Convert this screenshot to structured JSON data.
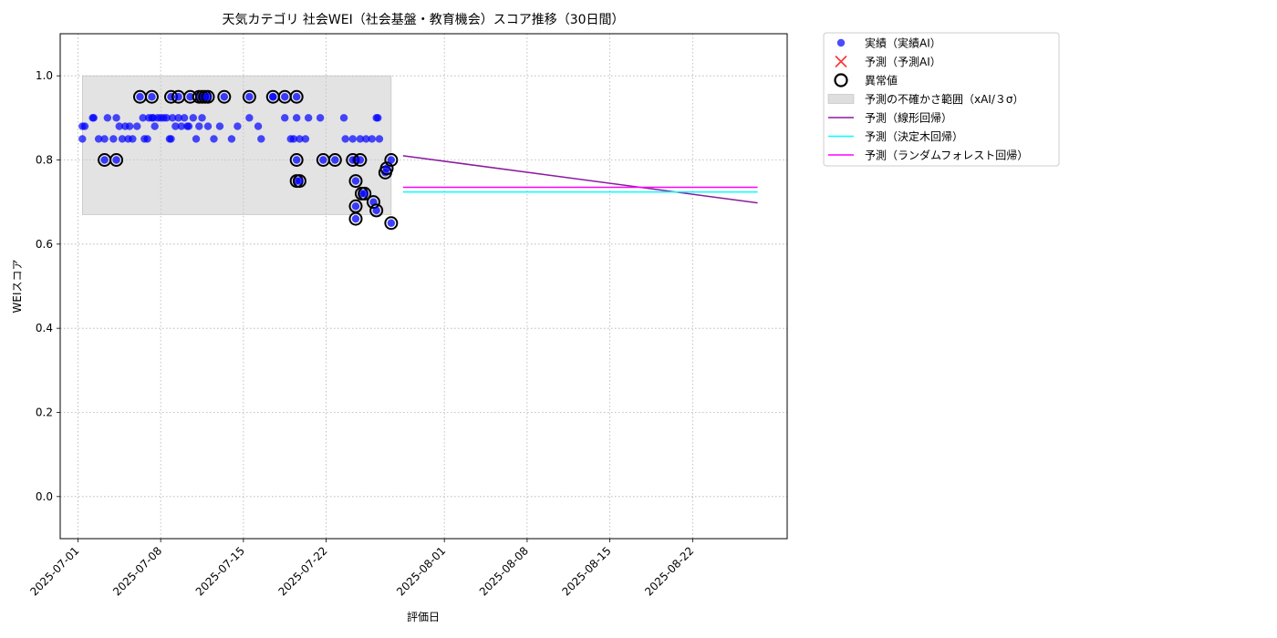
{
  "chart_data": {
    "type": "scatter",
    "title": "天気カテゴリ 社会WEI（社会基盤・教育機会）スコア推移（30日間）",
    "xlabel": "評価日",
    "ylabel": "WEIスコア",
    "xlim": [
      "2025-06-29T12:00",
      "2025-08-30T00:00"
    ],
    "ylim": [
      -0.1,
      1.1
    ],
    "xticks": [
      "2025-07-01",
      "2025-07-08",
      "2025-07-15",
      "2025-07-22",
      "2025-08-01",
      "2025-08-08",
      "2025-08-15",
      "2025-08-22"
    ],
    "yticks": [
      0.0,
      0.2,
      0.4,
      0.6,
      0.8,
      1.0
    ],
    "ytick_labels": [
      "0.0",
      "0.2",
      "0.4",
      "0.6",
      "0.8",
      "1.0"
    ],
    "grid": true,
    "legend_position": "outside-upper-right",
    "legend": [
      {
        "label": "実績（実績AI）",
        "kind": "scatter-dot",
        "color": "#0000ff"
      },
      {
        "label": "予測（予測AI）",
        "kind": "x-marker",
        "color": "#ff0000"
      },
      {
        "label": "異常値",
        "kind": "ring",
        "color": "#000000"
      },
      {
        "label": "予測の不確かさ範囲（xAI/３σ）",
        "kind": "band",
        "color": "#c8c8c8"
      },
      {
        "label": "予測（線形回帰）",
        "kind": "line",
        "color": "#8b1a9e"
      },
      {
        "label": "予測（決定木回帰）",
        "kind": "line",
        "color": "#00ffff"
      },
      {
        "label": "予測（ランダムフォレスト回帰）",
        "kind": "line",
        "color": "#ff00ff"
      }
    ],
    "uncertainty_band": {
      "x_start": "2025-07-01T09:00",
      "x_end": "2025-07-27T12:00",
      "y_low": 0.67,
      "y_high": 1.0
    },
    "actual_points": [
      {
        "x": "2025-07-01T09:00",
        "y": 0.88
      },
      {
        "x": "2025-07-01T09:00",
        "y": 0.85
      },
      {
        "x": "2025-07-01T14:00",
        "y": 0.88
      },
      {
        "x": "2025-07-02T06:00",
        "y": 0.9
      },
      {
        "x": "2025-07-02T08:00",
        "y": 0.9
      },
      {
        "x": "2025-07-02T18:00",
        "y": 0.85
      },
      {
        "x": "2025-07-03T06:00",
        "y": 0.85
      },
      {
        "x": "2025-07-03T12:00",
        "y": 0.9
      },
      {
        "x": "2025-07-04T00:00",
        "y": 0.85
      },
      {
        "x": "2025-07-04T06:00",
        "y": 0.9
      },
      {
        "x": "2025-07-04T12:00",
        "y": 0.88
      },
      {
        "x": "2025-07-04T18:00",
        "y": 0.85
      },
      {
        "x": "2025-07-05T00:00",
        "y": 0.88
      },
      {
        "x": "2025-07-05T06:00",
        "y": 0.85
      },
      {
        "x": "2025-07-05T09:00",
        "y": 0.88
      },
      {
        "x": "2025-07-05T15:00",
        "y": 0.85
      },
      {
        "x": "2025-07-06T00:00",
        "y": 0.88
      },
      {
        "x": "2025-07-06T12:00",
        "y": 0.9
      },
      {
        "x": "2025-07-06T15:00",
        "y": 0.85
      },
      {
        "x": "2025-07-06T21:00",
        "y": 0.85
      },
      {
        "x": "2025-07-07T00:00",
        "y": 0.9
      },
      {
        "x": "2025-07-07T06:00",
        "y": 0.9
      },
      {
        "x": "2025-07-07T09:00",
        "y": 0.9
      },
      {
        "x": "2025-07-07T12:00",
        "y": 0.88
      },
      {
        "x": "2025-07-07T18:00",
        "y": 0.9
      },
      {
        "x": "2025-07-08T00:00",
        "y": 0.9
      },
      {
        "x": "2025-07-08T06:00",
        "y": 0.9
      },
      {
        "x": "2025-07-08T12:00",
        "y": 0.9
      },
      {
        "x": "2025-07-08T18:00",
        "y": 0.85
      },
      {
        "x": "2025-07-08T21:00",
        "y": 0.85
      },
      {
        "x": "2025-07-09T00:00",
        "y": 0.9
      },
      {
        "x": "2025-07-09T06:00",
        "y": 0.88
      },
      {
        "x": "2025-07-09T12:00",
        "y": 0.9
      },
      {
        "x": "2025-07-09T18:00",
        "y": 0.88
      },
      {
        "x": "2025-07-10T00:00",
        "y": 0.9
      },
      {
        "x": "2025-07-10T06:00",
        "y": 0.88
      },
      {
        "x": "2025-07-10T09:00",
        "y": 0.88
      },
      {
        "x": "2025-07-10T18:00",
        "y": 0.9
      },
      {
        "x": "2025-07-11T00:00",
        "y": 0.85
      },
      {
        "x": "2025-07-11T06:00",
        "y": 0.88
      },
      {
        "x": "2025-07-11T12:00",
        "y": 0.9
      },
      {
        "x": "2025-07-12T00:00",
        "y": 0.88
      },
      {
        "x": "2025-07-12T12:00",
        "y": 0.85
      },
      {
        "x": "2025-07-13T00:00",
        "y": 0.88
      },
      {
        "x": "2025-07-14T00:00",
        "y": 0.85
      },
      {
        "x": "2025-07-14T12:00",
        "y": 0.88
      },
      {
        "x": "2025-07-15T12:00",
        "y": 0.9
      },
      {
        "x": "2025-07-16T06:00",
        "y": 0.88
      },
      {
        "x": "2025-07-16T12:00",
        "y": 0.85
      },
      {
        "x": "2025-07-17T12:00",
        "y": 0.95
      },
      {
        "x": "2025-07-18T12:00",
        "y": 0.9
      },
      {
        "x": "2025-07-19T00:00",
        "y": 0.85
      },
      {
        "x": "2025-07-19T06:00",
        "y": 0.85
      },
      {
        "x": "2025-07-19T12:00",
        "y": 0.9
      },
      {
        "x": "2025-07-19T18:00",
        "y": 0.85
      },
      {
        "x": "2025-07-20T06:00",
        "y": 0.85
      },
      {
        "x": "2025-07-20T12:00",
        "y": 0.9
      },
      {
        "x": "2025-07-21T12:00",
        "y": 0.9
      },
      {
        "x": "2025-07-23T12:00",
        "y": 0.9
      },
      {
        "x": "2025-07-23T15:00",
        "y": 0.85
      },
      {
        "x": "2025-07-24T06:00",
        "y": 0.85
      },
      {
        "x": "2025-07-24T12:00",
        "y": 0.8
      },
      {
        "x": "2025-07-24T21:00",
        "y": 0.85
      },
      {
        "x": "2025-07-25T09:00",
        "y": 0.85
      },
      {
        "x": "2025-07-25T21:00",
        "y": 0.85
      },
      {
        "x": "2025-07-26T06:00",
        "y": 0.9
      },
      {
        "x": "2025-07-26T09:00",
        "y": 0.9
      },
      {
        "x": "2025-07-26T12:00",
        "y": 0.85
      }
    ],
    "anomaly_points": [
      {
        "x": "2025-07-03T06:00",
        "y": 0.8
      },
      {
        "x": "2025-07-04T06:00",
        "y": 0.8
      },
      {
        "x": "2025-07-06T06:00",
        "y": 0.95
      },
      {
        "x": "2025-07-07T06:00",
        "y": 0.95
      },
      {
        "x": "2025-07-08T21:00",
        "y": 0.95
      },
      {
        "x": "2025-07-09T12:00",
        "y": 0.95
      },
      {
        "x": "2025-07-10T12:00",
        "y": 0.95
      },
      {
        "x": "2025-07-11T06:00",
        "y": 0.95
      },
      {
        "x": "2025-07-11T12:00",
        "y": 0.95
      },
      {
        "x": "2025-07-11T18:00",
        "y": 0.95
      },
      {
        "x": "2025-07-12T00:00",
        "y": 0.95
      },
      {
        "x": "2025-07-13T09:00",
        "y": 0.95
      },
      {
        "x": "2025-07-15T12:00",
        "y": 0.95
      },
      {
        "x": "2025-07-17T12:00",
        "y": 0.95
      },
      {
        "x": "2025-07-18T12:00",
        "y": 0.95
      },
      {
        "x": "2025-07-19T12:00",
        "y": 0.95
      },
      {
        "x": "2025-07-19T12:00",
        "y": 0.8
      },
      {
        "x": "2025-07-19T12:00",
        "y": 0.75
      },
      {
        "x": "2025-07-19T18:00",
        "y": 0.75
      },
      {
        "x": "2025-07-21T18:00",
        "y": 0.8
      },
      {
        "x": "2025-07-22T18:00",
        "y": 0.8
      },
      {
        "x": "2025-07-24T06:00",
        "y": 0.8
      },
      {
        "x": "2025-07-24T12:00",
        "y": 0.75
      },
      {
        "x": "2025-07-24T12:00",
        "y": 0.69
      },
      {
        "x": "2025-07-24T12:00",
        "y": 0.66
      },
      {
        "x": "2025-07-24T21:00",
        "y": 0.8
      },
      {
        "x": "2025-07-25T00:00",
        "y": 0.72
      },
      {
        "x": "2025-07-25T06:00",
        "y": 0.72
      },
      {
        "x": "2025-07-26T00:00",
        "y": 0.7
      },
      {
        "x": "2025-07-26T06:00",
        "y": 0.68
      },
      {
        "x": "2025-07-27T00:00",
        "y": 0.77
      },
      {
        "x": "2025-07-27T03:00",
        "y": 0.78
      },
      {
        "x": "2025-07-27T12:00",
        "y": 0.8
      },
      {
        "x": "2025-07-27T12:00",
        "y": 0.65
      }
    ],
    "forecast_lines": [
      {
        "name": "予測（線形回帰）",
        "color": "#8b1a9e",
        "x": [
          "2025-07-28T12:00",
          "2025-08-27T12:00"
        ],
        "y": [
          0.81,
          0.698
        ]
      },
      {
        "name": "予測（決定木回帰）",
        "color": "#00ffff",
        "x": [
          "2025-07-28T12:00",
          "2025-08-27T12:00"
        ],
        "y": [
          0.724,
          0.724
        ]
      },
      {
        "name": "予測（ランダムフォレスト回帰）",
        "color": "#ff00ff",
        "x": [
          "2025-07-28T12:00",
          "2025-08-27T12:00"
        ],
        "y": [
          0.735,
          0.735
        ]
      }
    ]
  }
}
